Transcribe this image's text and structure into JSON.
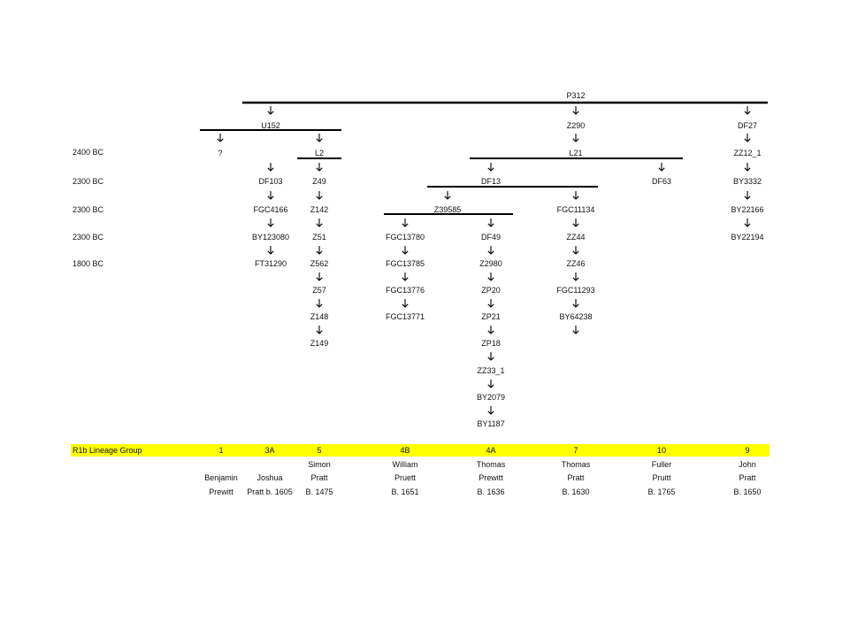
{
  "dates": [
    "2400 BC",
    "2300 BC",
    "2300 BC",
    "2300 BC",
    "1800 BC"
  ],
  "nodes": {
    "p312": "P312",
    "u152": "U152",
    "z290": "Z290",
    "df27": "DF27",
    "unknown": "?",
    "l2": "L2",
    "l21": "L21",
    "zz12_1": "ZZ12_1",
    "df103": "DF103",
    "z49": "Z49",
    "df13": "DF13",
    "df63": "DF63",
    "by3332": "BY3332",
    "fgc4166": "FGC4166",
    "z142": "Z142",
    "z39585": "Z39585",
    "fgc11134": "FGC11134",
    "by22166": "BY22166",
    "by123080": "BY123080",
    "z51": "Z51",
    "fgc13780": "FGC13780",
    "df49": "DF49",
    "zz44": "ZZ44",
    "by22194": "BY22194",
    "ft31290": "FT31290",
    "z562": "Z562",
    "fgc13785": "FGC13785",
    "z2980": "Z2980",
    "zz46": "ZZ46",
    "z57": "Z57",
    "fgc13776": "FGC13776",
    "zp20": "ZP20",
    "fgc11293": "FGC11293",
    "z148": "Z148",
    "fgc13771": "FGC13771",
    "zp21": "ZP21",
    "by64238": "BY64238",
    "z149": "Z149",
    "zp18": "ZP18",
    "zz33_1": "ZZ33_1",
    "by2079": "BY2079",
    "by1187": "BY1187"
  },
  "lineage": {
    "title": "R1b Lineage Group",
    "band_color": "#ffff00",
    "groups": [
      {
        "id": "1",
        "lines": [
          "",
          "Benjamin",
          "Prewitt"
        ]
      },
      {
        "id": "3A",
        "lines": [
          "",
          "Joshua",
          "Pratt b. 1605"
        ]
      },
      {
        "id": "5",
        "lines": [
          "Simon",
          "Pratt",
          "B. 1475"
        ]
      },
      {
        "id": "4B",
        "lines": [
          "William",
          "Pruett",
          "B. 1651"
        ]
      },
      {
        "id": "4A",
        "lines": [
          "Thomas",
          "Prewitt",
          "B. 1636"
        ]
      },
      {
        "id": "7",
        "lines": [
          "Thomas",
          "Pratt",
          "B. 1630"
        ]
      },
      {
        "id": "10",
        "lines": [
          "Fuller",
          "Pruitt",
          "B. 1765"
        ]
      },
      {
        "id": "9",
        "lines": [
          "John",
          "Pratt",
          "B. 1650"
        ]
      }
    ]
  }
}
